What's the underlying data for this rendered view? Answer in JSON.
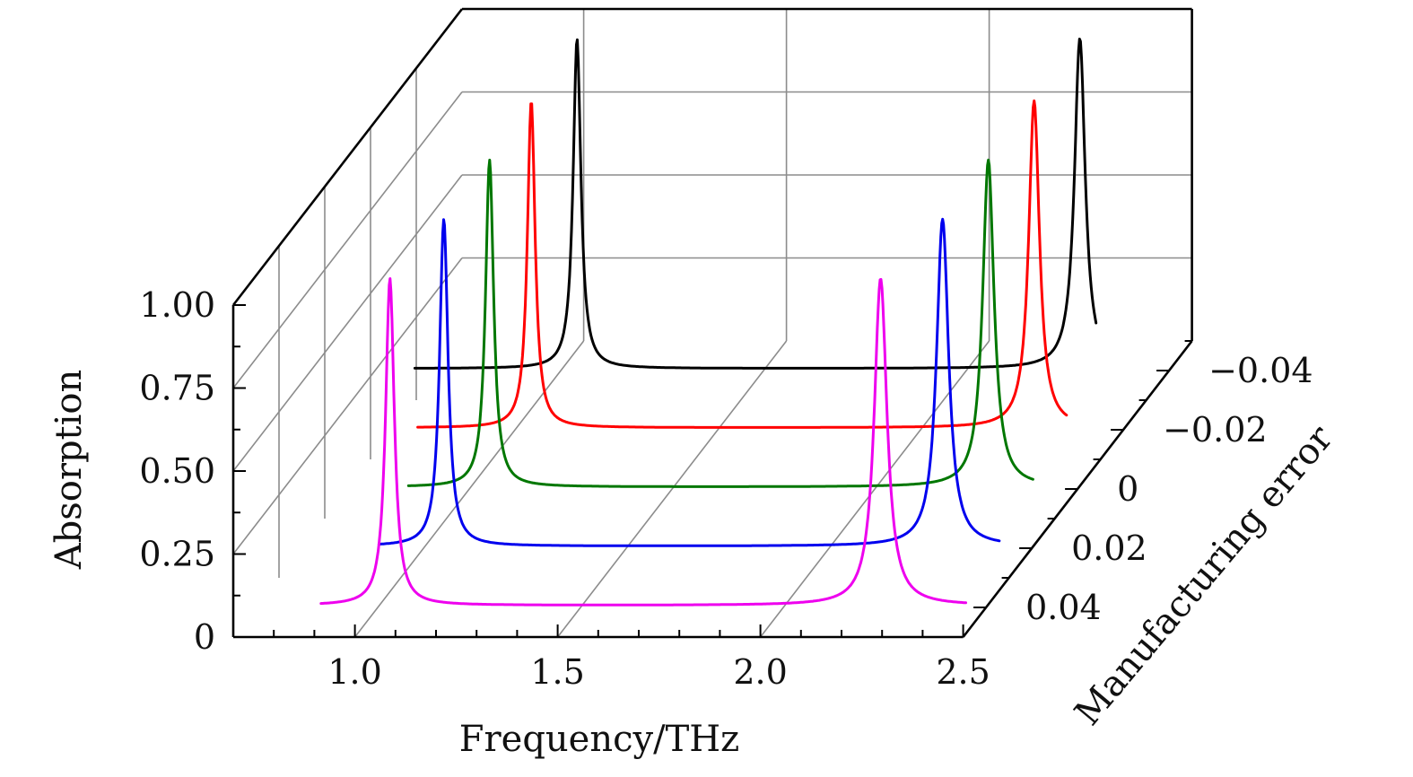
{
  "chart_data": {
    "type": "line",
    "subtype": "3d-waterfall",
    "title": "",
    "xlabel": "Frequency/THz",
    "ylabel": "Absorption",
    "zlabel": "Manufacturing error",
    "xlim": [
      0.7,
      2.5
    ],
    "ylim": [
      0,
      1.0
    ],
    "zlim": [
      -0.04,
      0.04
    ],
    "x_ticks": [
      "1.0",
      "1.5",
      "2.0",
      "2.5"
    ],
    "y_ticks": [
      "0",
      "0.25",
      "0.50",
      "0.75",
      "1.00"
    ],
    "z_ticks": [
      "0.04",
      "0.02",
      "0",
      "−0.02",
      "−0.04"
    ],
    "grid": true,
    "series": [
      {
        "z": -0.04,
        "color": "#000000",
        "x_start": 0.64,
        "x_end": 2.32,
        "peaks": [
          [
            1.04,
            0.995,
            0.0115
          ],
          [
            2.28,
            0.995,
            0.016
          ]
        ],
        "baseline": 0.006
      },
      {
        "z": -0.02,
        "color": "#ff0000",
        "x_start": 0.76,
        "x_end": 2.36,
        "peaks": [
          [
            1.04,
            0.985,
            0.0115
          ],
          [
            2.28,
            0.985,
            0.016
          ]
        ],
        "baseline": 0.006
      },
      {
        "z": 0,
        "color": "#007700",
        "x_start": 0.85,
        "x_end": 2.39,
        "peaks": [
          [
            1.05,
            0.985,
            0.012
          ],
          [
            2.28,
            0.985,
            0.017
          ]
        ],
        "baseline": 0.006
      },
      {
        "z": 0.02,
        "color": "#0000ee",
        "x_start": 0.89,
        "x_end": 2.42,
        "peaks": [
          [
            1.05,
            0.985,
            0.0125
          ],
          [
            2.28,
            0.985,
            0.018
          ]
        ],
        "baseline": 0.006
      },
      {
        "z": 0.04,
        "color": "#ee00ee",
        "x_start": 0.86,
        "x_end": 2.45,
        "peaks": [
          [
            1.03,
            0.985,
            0.013
          ],
          [
            2.24,
            0.985,
            0.019
          ]
        ],
        "baseline": 0.006
      }
    ]
  }
}
